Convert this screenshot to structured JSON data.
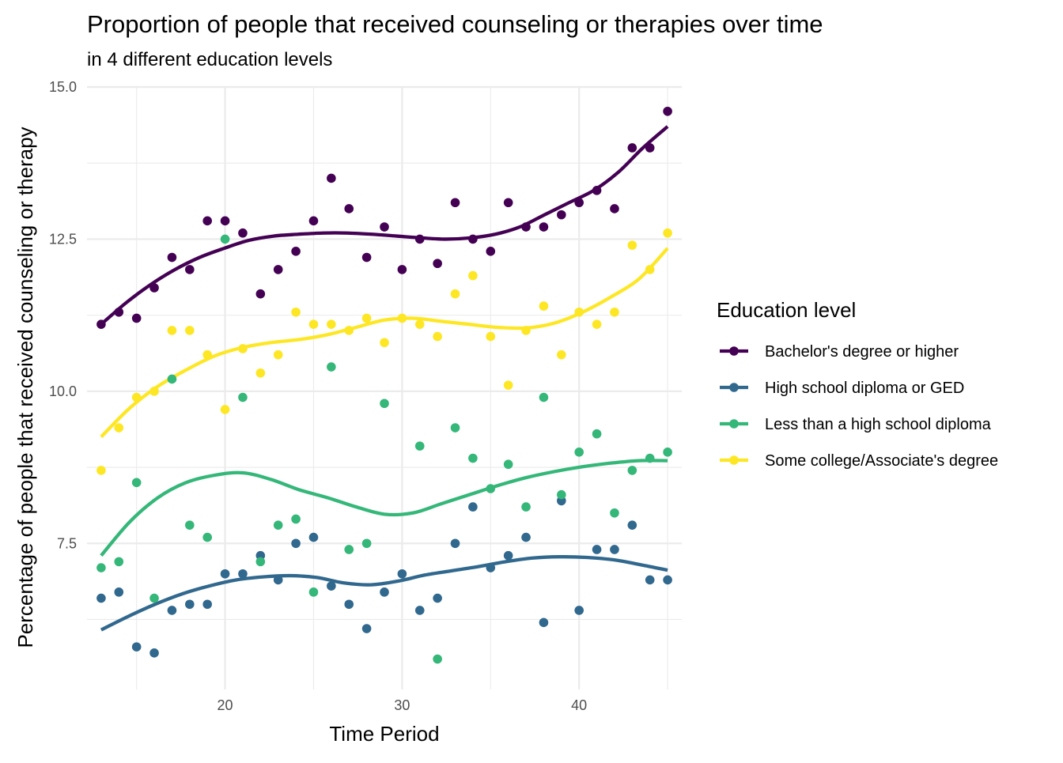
{
  "chart_data": {
    "type": "scatter",
    "title": "Proportion of people that received counseling or therapies over time",
    "subtitle": "in 4 different education levels",
    "xlabel": "Time Period",
    "ylabel": "Percentage of people that received counseling or therapy",
    "xlim": [
      12.2,
      45.8
    ],
    "ylim": [
      5.1,
      15.0
    ],
    "x_ticks": [
      20,
      30,
      40
    ],
    "x_minor_ticks": [
      15,
      25,
      35,
      45
    ],
    "y_ticks": [
      7.5,
      10.0,
      12.5,
      15.0
    ],
    "y_tick_labels": [
      "7.5",
      "10.0",
      "12.5",
      "15.0"
    ],
    "y_minor_ticks": [
      6.25,
      8.75,
      11.25,
      13.75
    ],
    "grid": true,
    "legend": {
      "title": "Education level",
      "position": "right"
    },
    "x": [
      13,
      14,
      15,
      16,
      17,
      18,
      19,
      20,
      21,
      22,
      23,
      24,
      25,
      26,
      27,
      28,
      29,
      30,
      31,
      32,
      33,
      34,
      35,
      36,
      37,
      38,
      39,
      40,
      41,
      42,
      43,
      44,
      45
    ],
    "series": [
      {
        "name": "Bachelor's degree or higher",
        "color": "#440154",
        "values": [
          11.1,
          11.3,
          11.2,
          11.7,
          12.2,
          12.0,
          12.8,
          12.8,
          12.6,
          11.6,
          12.0,
          12.3,
          12.8,
          13.5,
          13.0,
          12.2,
          12.7,
          12.0,
          12.5,
          12.1,
          13.1,
          12.5,
          12.3,
          13.1,
          12.7,
          12.7,
          12.9,
          13.1,
          13.3,
          13.0,
          14.0,
          14.0,
          14.6
        ],
        "trend": [
          11.1,
          11.45,
          11.75,
          12.0,
          12.2,
          12.35,
          12.48,
          12.55,
          12.58,
          12.6,
          12.6,
          12.58,
          12.55,
          12.52,
          12.5,
          12.52,
          12.58,
          12.7,
          12.9,
          13.1,
          13.3,
          13.6,
          14.0,
          14.35
        ]
      },
      {
        "name": "High school diploma or GED",
        "color": "#31688E",
        "values": [
          6.6,
          6.7,
          5.8,
          5.7,
          6.4,
          6.5,
          6.5,
          7.0,
          7.0,
          7.3,
          6.9,
          7.5,
          7.6,
          6.8,
          6.5,
          6.1,
          6.7,
          7.0,
          6.4,
          6.6,
          7.5,
          8.1,
          7.1,
          7.3,
          7.6,
          6.2,
          8.2,
          6.4,
          7.4,
          7.4,
          7.8,
          6.9,
          6.9
        ],
        "trend": [
          6.08,
          6.3,
          6.5,
          6.67,
          6.8,
          6.9,
          6.95,
          6.97,
          6.94,
          6.85,
          6.82,
          6.88,
          6.98,
          7.05,
          7.12,
          7.2,
          7.26,
          7.28,
          7.27,
          7.23,
          7.15,
          7.06
        ]
      },
      {
        "name": "Less than a high school diploma",
        "color": "#35B779",
        "values": [
          7.1,
          7.2,
          8.5,
          6.6,
          10.2,
          7.8,
          7.6,
          12.5,
          9.9,
          7.2,
          7.8,
          7.9,
          6.7,
          10.4,
          7.4,
          7.5,
          9.8,
          null,
          9.1,
          5.6,
          9.4,
          8.9,
          8.4,
          8.8,
          8.1,
          9.9,
          8.3,
          9.0,
          9.3,
          8.0,
          8.7,
          8.9,
          9.0
        ],
        "trend": [
          7.3,
          7.85,
          8.25,
          8.5,
          8.62,
          8.66,
          8.55,
          8.38,
          8.25,
          8.1,
          7.98,
          8.0,
          8.15,
          8.3,
          8.45,
          8.58,
          8.68,
          8.76,
          8.82,
          8.86,
          8.86
        ]
      },
      {
        "name": "Some college/Associate's degree",
        "color": "#FDE725",
        "values": [
          8.7,
          9.4,
          9.9,
          10.0,
          11.0,
          11.0,
          10.6,
          9.7,
          10.7,
          10.3,
          10.6,
          11.3,
          11.1,
          11.1,
          11.0,
          11.2,
          10.8,
          11.2,
          11.1,
          10.9,
          11.6,
          11.9,
          10.9,
          10.1,
          11.0,
          11.4,
          10.6,
          11.3,
          11.1,
          11.3,
          12.4,
          12.0,
          12.6
        ],
        "trend": [
          9.25,
          9.72,
          10.08,
          10.35,
          10.58,
          10.72,
          10.8,
          10.85,
          10.93,
          11.05,
          11.17,
          11.2,
          11.15,
          11.1,
          11.05,
          11.04,
          11.12,
          11.3,
          11.55,
          11.85,
          12.35
        ]
      }
    ]
  }
}
